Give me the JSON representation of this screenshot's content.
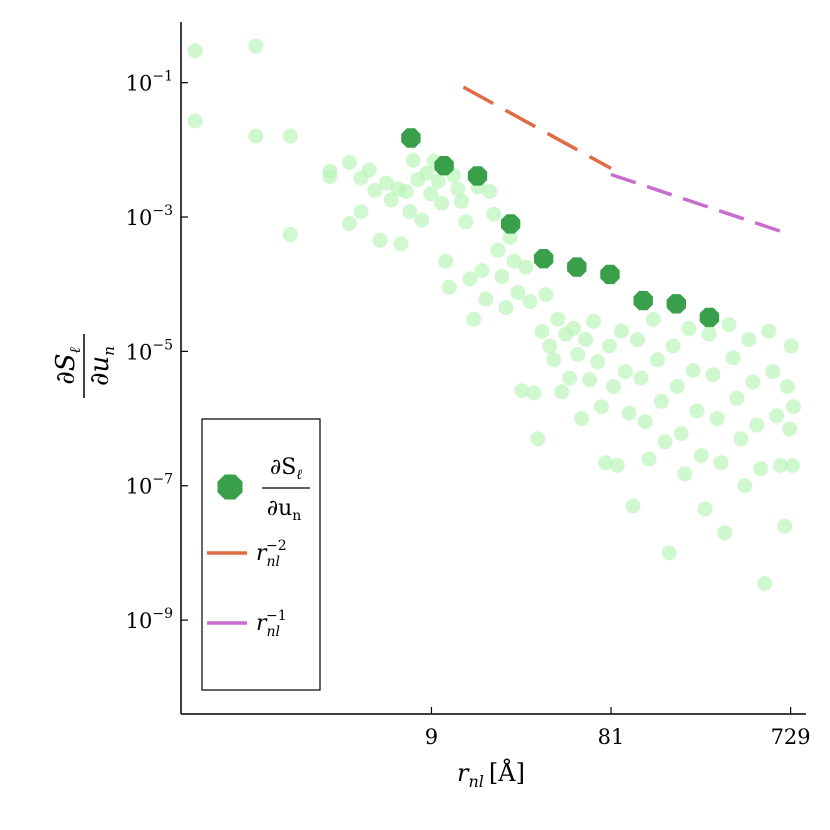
{
  "chart_data": {
    "type": "scatter",
    "x_scale": "log",
    "y_scale": "log",
    "xlim": [
      0.42,
      880
    ],
    "ylim": [
      4e-11,
      0.8
    ],
    "grid": false,
    "legend_position": "bottom-left",
    "xlabel": "r_nl [Å]",
    "ylabel": "∂S_ℓ / ∂u_n",
    "x_ticks": [
      {
        "value": 9,
        "label": "9"
      },
      {
        "value": 81,
        "label": "81"
      },
      {
        "value": 729,
        "label": "729"
      }
    ],
    "y_ticks": [
      {
        "value": 0.1,
        "label": "10^-1"
      },
      {
        "value": 0.001,
        "label": "10^-3"
      },
      {
        "value": 1e-05,
        "label": "10^-5"
      },
      {
        "value": 1e-07,
        "label": "10^-7"
      },
      {
        "value": 1e-09,
        "label": "10^-9"
      }
    ],
    "colors": {
      "scatter_light": "#b6f5b6",
      "mean_markers": "#3a9f4a",
      "power_minus_2": "#e06b45",
      "power_minus_1": "#c86cd0"
    },
    "series": [
      {
        "name": "∂S_ℓ / ∂u_n",
        "kind": "mean-markers",
        "points": [
          [
            7.0,
            0.015
          ],
          [
            10.5,
            0.0058
          ],
          [
            15.8,
            0.0041
          ],
          [
            23.7,
            0.00079
          ],
          [
            35.5,
            0.00024
          ],
          [
            53.3,
            0.00018
          ],
          [
            80.0,
            0.00014
          ],
          [
            120,
            5.7e-05
          ],
          [
            180,
            5.1e-05
          ],
          [
            270,
            3.2e-05
          ]
        ]
      },
      {
        "name": "r_nl^-2",
        "kind": "reference-line",
        "style": "dashed",
        "points": [
          [
            13.3,
            0.086
          ],
          [
            81,
            0.0053
          ]
        ]
      },
      {
        "name": "r_nl^-1",
        "kind": "reference-line",
        "style": "dashed",
        "points": [
          [
            81,
            0.0043
          ],
          [
            660,
            0.0006
          ]
        ]
      }
    ],
    "cloud": {
      "kind": "background-scatter",
      "points": [
        [
          0.5,
          0.3
        ],
        [
          0.5,
          0.027
        ],
        [
          1.05,
          0.35
        ],
        [
          1.05,
          0.016
        ],
        [
          1.6,
          0.016
        ],
        [
          1.6,
          0.00055
        ],
        [
          2.6,
          0.0048
        ],
        [
          2.6,
          0.004
        ],
        [
          3.3,
          0.0065
        ],
        [
          3.3,
          0.0008
        ],
        [
          3.8,
          0.0038
        ],
        [
          3.8,
          0.0012
        ],
        [
          4.2,
          0.005
        ],
        [
          4.5,
          0.0025
        ],
        [
          4.8,
          0.00045
        ],
        [
          5.2,
          0.0032
        ],
        [
          5.5,
          0.0018
        ],
        [
          6.0,
          0.0026
        ],
        [
          6.2,
          0.0004
        ],
        [
          6.6,
          0.0024
        ],
        [
          6.9,
          0.0012
        ],
        [
          7.2,
          0.007
        ],
        [
          7.6,
          0.0036
        ],
        [
          8.0,
          0.0009
        ],
        [
          8.5,
          0.0045
        ],
        [
          8.9,
          0.0022
        ],
        [
          9.3,
          0.0068
        ],
        [
          9.8,
          0.0034
        ],
        [
          10.2,
          0.0016
        ],
        [
          10.7,
          0.00022
        ],
        [
          11.2,
          9e-05
        ],
        [
          11.8,
          0.0042
        ],
        [
          12.4,
          0.0026
        ],
        [
          13.0,
          0.0017
        ],
        [
          13.7,
          0.00085
        ],
        [
          14.4,
          0.00012
        ],
        [
          15.1,
          3e-05
        ],
        [
          15.9,
          0.0028
        ],
        [
          16.7,
          0.00016
        ],
        [
          17.5,
          6e-05
        ],
        [
          18.4,
          0.0024
        ],
        [
          19.3,
          0.0011
        ],
        [
          20.3,
          0.00032
        ],
        [
          21.3,
          0.00013
        ],
        [
          22.4,
          4.5e-05
        ],
        [
          23.5,
          0.0005
        ],
        [
          24.7,
          0.00022
        ],
        [
          25.9,
          7.5e-05
        ],
        [
          27.2,
          2.6e-06
        ],
        [
          28.6,
          0.00018
        ],
        [
          30.0,
          5.5e-05
        ],
        [
          31.5,
          2.4e-06
        ],
        [
          33.1,
          5e-07
        ],
        [
          34.8,
          2e-05
        ],
        [
          36.5,
          7e-05
        ],
        [
          38.3,
          1.2e-05
        ],
        [
          40.2,
          7.5e-06
        ],
        [
          42.2,
          3e-05
        ],
        [
          44.3,
          2.5e-06
        ],
        [
          46.5,
          1.8e-05
        ],
        [
          48.8,
          4e-06
        ],
        [
          51.3,
          2.2e-05
        ],
        [
          53.8,
          9e-06
        ],
        [
          56.5,
          1e-06
        ],
        [
          59.3,
          1.5e-05
        ],
        [
          62.3,
          3.8e-06
        ],
        [
          65.4,
          2.8e-05
        ],
        [
          68.7,
          7e-06
        ],
        [
          72.1,
          1.5e-06
        ],
        [
          75.7,
          2.2e-07
        ],
        [
          79.5,
          1.2e-05
        ],
        [
          83.5,
          3e-06
        ],
        [
          87.6,
          2e-07
        ],
        [
          92.0,
          2e-05
        ],
        [
          96.6,
          5e-06
        ],
        [
          101,
          1.2e-06
        ],
        [
          106,
          5e-08
        ],
        [
          112,
          1.5e-05
        ],
        [
          117,
          4e-06
        ],
        [
          123,
          9e-07
        ],
        [
          129,
          2.5e-07
        ],
        [
          136,
          3e-05
        ],
        [
          143,
          7.5e-06
        ],
        [
          150,
          1.8e-06
        ],
        [
          157,
          4.5e-07
        ],
        [
          165,
          1e-08
        ],
        [
          173,
          1.2e-05
        ],
        [
          182,
          3e-06
        ],
        [
          191,
          6e-07
        ],
        [
          200,
          1.5e-07
        ],
        [
          210,
          2.2e-05
        ],
        [
          221,
          5.2e-06
        ],
        [
          232,
          1.3e-06
        ],
        [
          244,
          2.8e-07
        ],
        [
          256,
          4.5e-08
        ],
        [
          269,
          1.8e-05
        ],
        [
          282,
          4.5e-06
        ],
        [
          296,
          1e-06
        ],
        [
          311,
          2.2e-07
        ],
        [
          326,
          2e-08
        ],
        [
          343,
          2.5e-05
        ],
        [
          360,
          8e-06
        ],
        [
          378,
          2e-06
        ],
        [
          397,
          5e-07
        ],
        [
          416,
          1e-07
        ],
        [
          437,
          1.5e-05
        ],
        [
          459,
          3.5e-06
        ],
        [
          482,
          8e-07
        ],
        [
          506,
          1.8e-07
        ],
        [
          531,
          3.5e-09
        ],
        [
          558,
          2e-05
        ],
        [
          586,
          5e-06
        ],
        [
          615,
          1.1e-06
        ],
        [
          645,
          2e-07
        ],
        [
          677,
          2.5e-08
        ],
        [
          700,
          3e-06
        ],
        [
          720,
          7e-07
        ],
        [
          735,
          1.2e-05
        ],
        [
          745,
          2e-07
        ],
        [
          755,
          1.5e-06
        ]
      ]
    }
  }
}
